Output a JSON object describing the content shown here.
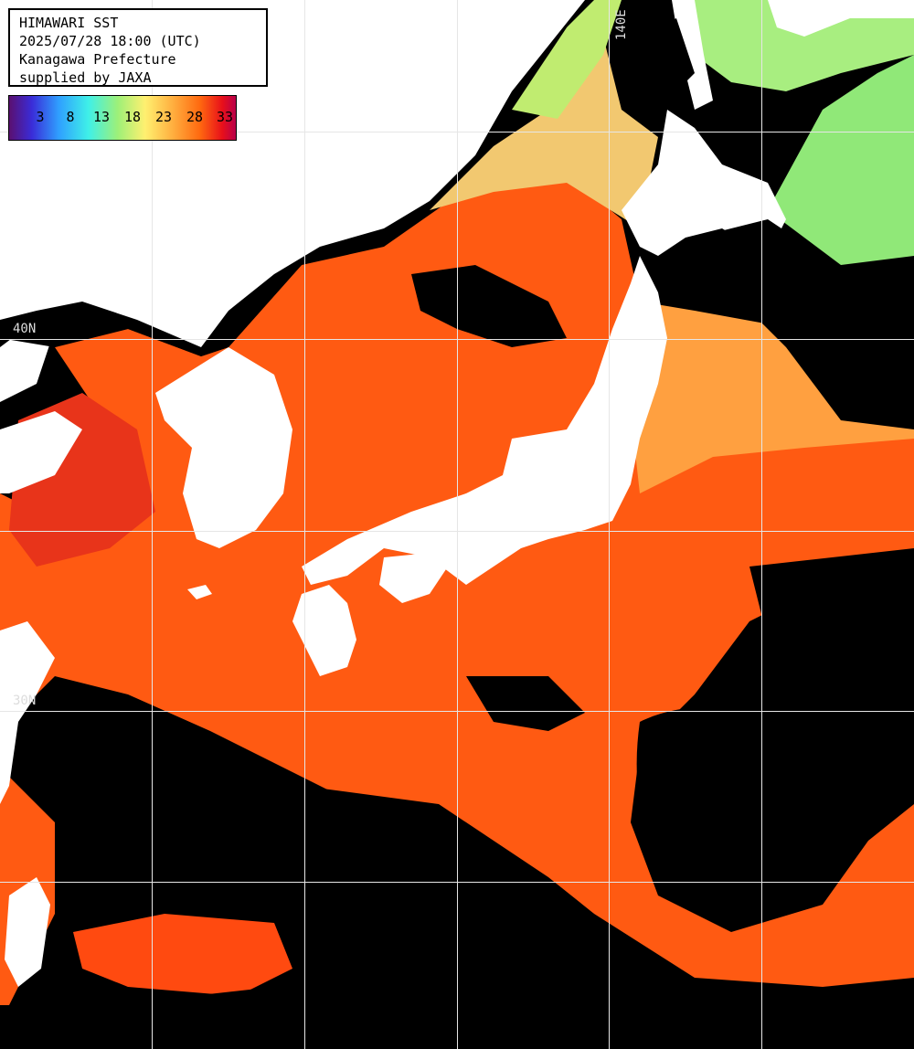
{
  "header": {
    "line1": "HIMAWARI SST",
    "line2": "2025/07/28 18:00 (UTC)",
    "line3": "Kanagawa Prefecture",
    "line4": "supplied by JAXA"
  },
  "colorbar": {
    "ticks": [
      "3",
      "8",
      "13",
      "18",
      "23",
      "28",
      "33"
    ]
  },
  "grid_labels": {
    "lon_140": "140E",
    "lat_40": "40N",
    "lat_30": "30N"
  },
  "colors": {
    "warm_sea": "#ff5a12",
    "hot_sea": "#e8301a",
    "mild_sea": "#ffa040",
    "cool_sea": "#f0d070",
    "cold_sea": "#90e878",
    "land": "#ffffff",
    "cloud": "#000000",
    "grid": "#e6e6e6"
  }
}
